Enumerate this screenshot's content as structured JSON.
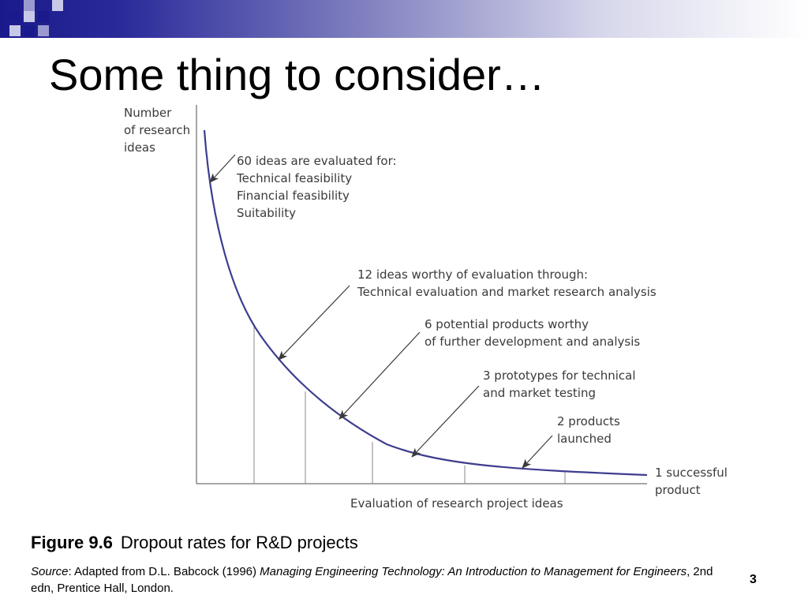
{
  "slide": {
    "title": "Some thing to consider…",
    "page_number": "3"
  },
  "diagram": {
    "y_axis_label": [
      "Number",
      "of research",
      "ideas"
    ],
    "x_axis_label": "Evaluation of research project ideas",
    "annotations": [
      {
        "id": "a60",
        "lines": [
          "60 ideas are evaluated for:",
          "Technical feasibility",
          "Financial feasibility",
          "Suitability"
        ]
      },
      {
        "id": "a12",
        "lines": [
          "12 ideas worthy of evaluation through:",
          "Technical evaluation and market research analysis"
        ]
      },
      {
        "id": "a6",
        "lines": [
          "6 potential products worthy",
          "of further development and analysis"
        ]
      },
      {
        "id": "a3",
        "lines": [
          "3 prototypes for technical",
          "and market testing"
        ]
      },
      {
        "id": "a2",
        "lines": [
          "2 products",
          "launched"
        ]
      },
      {
        "id": "a1",
        "lines": [
          "1 successful",
          "product"
        ]
      }
    ]
  },
  "caption": {
    "figure_label": "Figure 9.6",
    "figure_text": "Dropout rates for R&D projects"
  },
  "source": {
    "prefix": "Source",
    "text1": ": Adapted from D.L. Babcock (1996) ",
    "book_title": "Managing Engineering Technology: An Introduction to Management for Engineers",
    "text2": ", 2nd edn, Prentice Hall, London."
  },
  "colors": {
    "curve": "#3d3d8f",
    "axis": "#888888",
    "header_dark": "#1a1a8c"
  }
}
